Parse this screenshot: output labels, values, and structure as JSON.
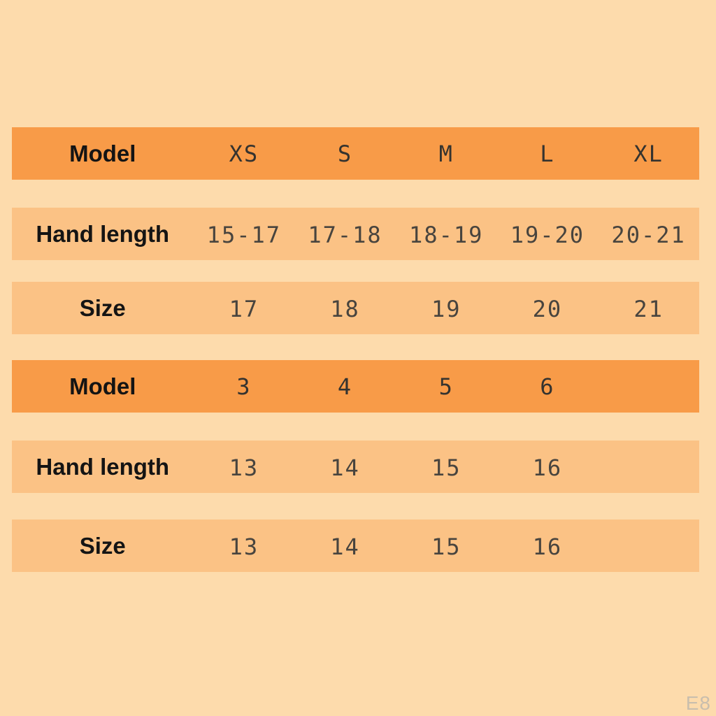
{
  "page": {
    "background_color": "#FDDBAC",
    "watermark": "E8",
    "watermark_color": "#C9BEAD"
  },
  "colors": {
    "header_row_background": "#F89B48",
    "data_row_background": "#FBC285",
    "label_text": "#141414",
    "value_text": "#48443E"
  },
  "size_chart": {
    "rows": [
      {
        "type": "header",
        "label": "Model",
        "values": [
          "XS",
          "S",
          "M",
          "L",
          "XL"
        ]
      },
      {
        "type": "data",
        "label": "Hand length",
        "values": [
          "15-17",
          "17-18",
          "18-19",
          "19-20",
          "20-21"
        ]
      },
      {
        "type": "data",
        "label": "Size",
        "values": [
          "17",
          "18",
          "19",
          "20",
          "21"
        ]
      },
      {
        "type": "header",
        "label": "Model",
        "values": [
          "3",
          "4",
          "5",
          "6",
          ""
        ]
      },
      {
        "type": "data",
        "label": "Hand length",
        "values": [
          "13",
          "14",
          "15",
          "16",
          ""
        ]
      },
      {
        "type": "data",
        "label": "Size",
        "values": [
          "13",
          "14",
          "15",
          "16",
          ""
        ]
      }
    ]
  }
}
